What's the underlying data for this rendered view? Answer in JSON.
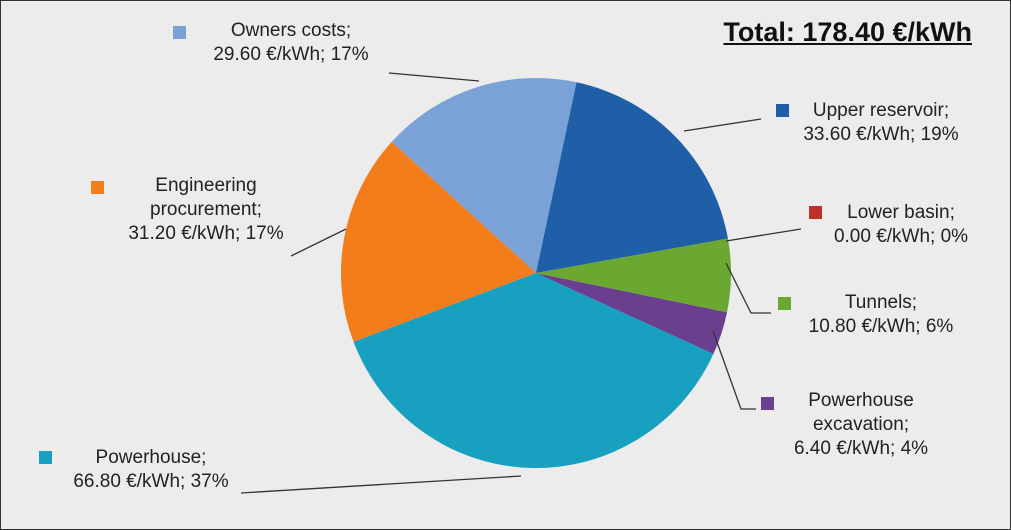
{
  "chart_data": {
    "type": "pie",
    "title": "Total: 178.40 €/kWh",
    "categories": [
      "Upper reservoir;",
      "Lower basin;",
      "Tunnels;",
      "Powerhouse excavation;",
      "Powerhouse;",
      "Engineering procurement;",
      "Owners costs;"
    ],
    "values": [
      33.6,
      0,
      10.8,
      6.4,
      66.8,
      31.2,
      29.6
    ],
    "value_labels": [
      "33.60 €/kWh; 19%",
      "0.00 €/kWh; 0%",
      "10.80 €/kWh; 6%",
      "6.40 €/kWh; 4%",
      "66.80 €/kWh; 37%",
      "31.20 €/kWh; 17%",
      "29.60 €/kWh; 17%"
    ],
    "colors": [
      "#1f5fa8",
      "#c0302a",
      "#6aa832",
      "#6b3f8f",
      "#17a0bf",
      "#f27d1a",
      "#7ba2d6"
    ]
  }
}
